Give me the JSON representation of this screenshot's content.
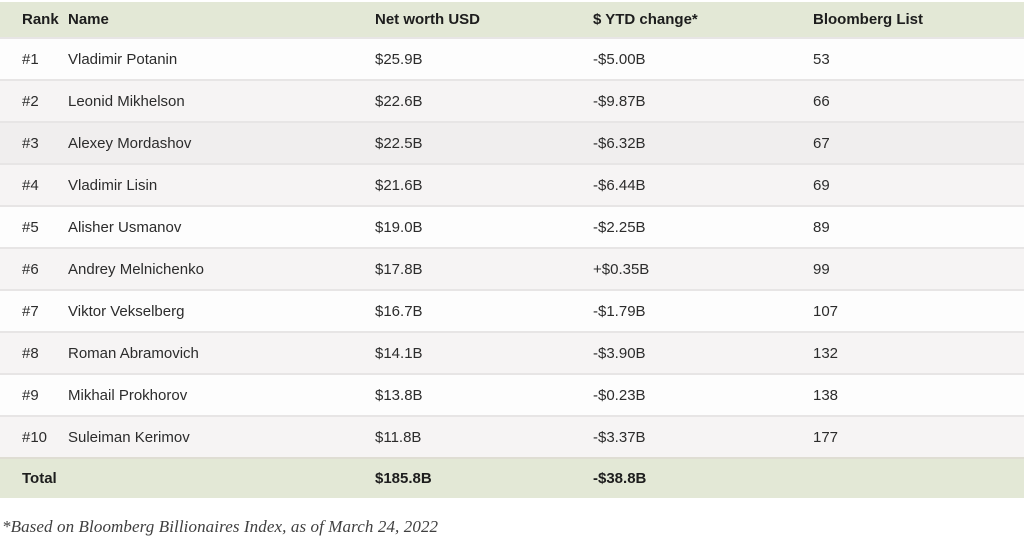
{
  "table": {
    "columns": [
      {
        "key": "rank",
        "label": "Rank"
      },
      {
        "key": "name",
        "label": "Name"
      },
      {
        "key": "net_worth",
        "label": "Net worth USD"
      },
      {
        "key": "ytd_change",
        "label": "$ YTD change*"
      },
      {
        "key": "bloomberg_list",
        "label": "Bloomberg List"
      }
    ],
    "rows": [
      {
        "rank": "#1",
        "name": "Vladimir Potanin",
        "net_worth": "$25.9B",
        "ytd_change": "-$5.00B",
        "bloomberg_list": "53"
      },
      {
        "rank": "#2",
        "name": "Leonid Mikhelson",
        "net_worth": "$22.6B",
        "ytd_change": "-$9.87B",
        "bloomberg_list": "66"
      },
      {
        "rank": "#3",
        "name": "Alexey Mordashov",
        "net_worth": "$22.5B",
        "ytd_change": "-$6.32B",
        "bloomberg_list": "67"
      },
      {
        "rank": "#4",
        "name": "Vladimir Lisin",
        "net_worth": "$21.6B",
        "ytd_change": "-$6.44B",
        "bloomberg_list": "69"
      },
      {
        "rank": "#5",
        "name": "Alisher Usmanov",
        "net_worth": "$19.0B",
        "ytd_change": "-$2.25B",
        "bloomberg_list": "89"
      },
      {
        "rank": "#6",
        "name": "Andrey Melnichenko",
        "net_worth": "$17.8B",
        "ytd_change": "+$0.35B",
        "bloomberg_list": "99"
      },
      {
        "rank": "#7",
        "name": "Viktor Vekselberg",
        "net_worth": "$16.7B",
        "ytd_change": "-$1.79B",
        "bloomberg_list": "107"
      },
      {
        "rank": "#8",
        "name": "Roman Abramovich",
        "net_worth": "$14.1B",
        "ytd_change": "-$3.90B",
        "bloomberg_list": "132"
      },
      {
        "rank": "#9",
        "name": "Mikhail Prokhorov",
        "net_worth": "$13.8B",
        "ytd_change": "-$0.23B",
        "bloomberg_list": "138"
      },
      {
        "rank": "#10",
        "name": "Suleiman Kerimov",
        "net_worth": "$11.8B",
        "ytd_change": "-$3.37B",
        "bloomberg_list": "177"
      }
    ],
    "total": {
      "label": "Total",
      "name": "",
      "net_worth": "$185.8B",
      "ytd_change": "-$38.8B",
      "bloomberg_list": ""
    }
  },
  "footnote": "*Based on Bloomberg Billionaires Index, as of March 24, 2022",
  "colors": {
    "header_bg": "#e3e8d6",
    "total_bg": "#e3e8d6",
    "row_bg": "#fdfdfd",
    "row_alt_bg": "#f6f4f4",
    "row_hover_bg": "#f0eeee",
    "row_border": "#e7e5e5",
    "text": "#2c2c2c"
  },
  "chart_data": {
    "type": "table",
    "columns": [
      "Rank",
      "Name",
      "Net worth USD",
      "$ YTD change*",
      "Bloomberg List"
    ],
    "rows": [
      [
        "#1",
        "Vladimir Potanin",
        "$25.9B",
        "-$5.00B",
        53
      ],
      [
        "#2",
        "Leonid Mikhelson",
        "$22.6B",
        "-$9.87B",
        66
      ],
      [
        "#3",
        "Alexey Mordashov",
        "$22.5B",
        "-$6.32B",
        67
      ],
      [
        "#4",
        "Vladimir Lisin",
        "$21.6B",
        "-$6.44B",
        69
      ],
      [
        "#5",
        "Alisher Usmanov",
        "$19.0B",
        "-$2.25B",
        89
      ],
      [
        "#6",
        "Andrey Melnichenko",
        "$17.8B",
        "+$0.35B",
        99
      ],
      [
        "#7",
        "Viktor Vekselberg",
        "$16.7B",
        "-$1.79B",
        107
      ],
      [
        "#8",
        "Roman Abramovich",
        "$14.1B",
        "-$3.90B",
        132
      ],
      [
        "#9",
        "Mikhail Prokhorov",
        "$13.8B",
        "-$0.23B",
        138
      ],
      [
        "#10",
        "Suleiman Kerimov",
        "$11.8B",
        "-$3.37B",
        177
      ]
    ],
    "net_worth_usd_billions": [
      25.9,
      22.6,
      22.5,
      21.6,
      19.0,
      17.8,
      16.7,
      14.1,
      13.8,
      11.8
    ],
    "ytd_change_usd_billions": [
      -5.0,
      -9.87,
      -6.32,
      -6.44,
      -2.25,
      0.35,
      -1.79,
      -3.9,
      -0.23,
      -3.37
    ],
    "bloomberg_list_positions": [
      53,
      66,
      67,
      69,
      89,
      99,
      107,
      132,
      138,
      177
    ],
    "total_net_worth_usd_billions": 185.8,
    "total_ytd_change_usd_billions": -38.8,
    "footnote": "*Based on Bloomberg Billionaires Index, as of March 24, 2022"
  }
}
